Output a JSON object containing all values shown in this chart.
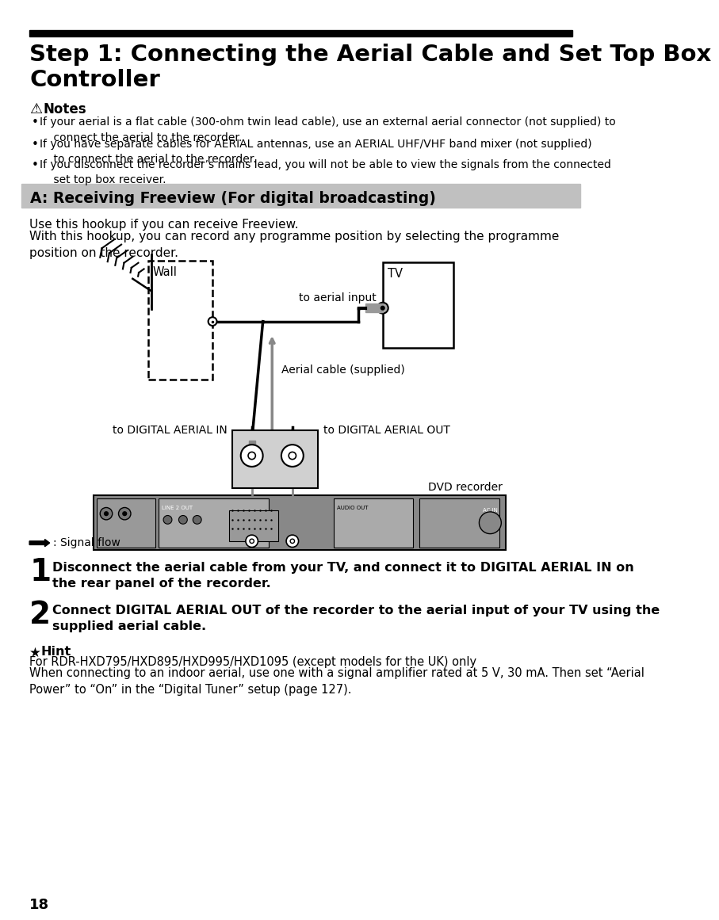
{
  "page_num": "18",
  "bg_color": "#ffffff",
  "top_bar_color": "#000000",
  "title_line1": "Step 1: Connecting the Aerial Cable and Set Top Box",
  "title_line2": "Controller",
  "notes_icon": "⚠",
  "notes_header": "Notes",
  "notes": [
    "If your aerial is a flat cable (300-ohm twin lead cable), use an external aerial connector (not supplied) to\n    connect the aerial to the recorder.",
    "If you have separate cables for AERIAL antennas, use an AERIAL UHF/VHF band mixer (not supplied)\n    to connect the aerial to the recorder.",
    "If you disconnect the recorder’s mains lead, you will not be able to view the signals from the connected\n    set top box receiver."
  ],
  "section_header": "A: Receiving Freeview (For digital broadcasting)",
  "section_bg": "#c0c0c0",
  "intro1": "Use this hookup if you can receive Freeview.",
  "intro2": "With this hookup, you can record any programme position by selecting the programme\nposition on the recorder.",
  "label_wall": "Wall",
  "label_tv": "TV",
  "label_aerial_input": "to aerial input",
  "label_aerial_cable": "Aerial cable (supplied)",
  "label_dig_in": "to DIGITAL AERIAL IN",
  "label_dig_out": "to DIGITAL AERIAL OUT",
  "label_dvd": "DVD recorder",
  "label_signal": ": Signal flow",
  "step1_num": "1",
  "step1_bold": "Disconnect the aerial cable from your TV, and connect it to DIGITAL AERIAL IN on\nthe rear panel of the recorder.",
  "step2_num": "2",
  "step2_bold": "Connect DIGITAL AERIAL OUT of the recorder to the aerial input of your TV using the\nsupplied aerial cable.",
  "hint_icon": "★",
  "hint_header": "Hint",
  "hint1": "For RDR-HXD795/HXD895/HXD995/HXD1095 (except models for the UK) only",
  "hint2": "When connecting to an indoor aerial, use one with a signal amplifier rated at 5 V, 30 mA. Then set “Aerial\nPower” to “On” in the “Digital Tuner” setup (page 127)."
}
